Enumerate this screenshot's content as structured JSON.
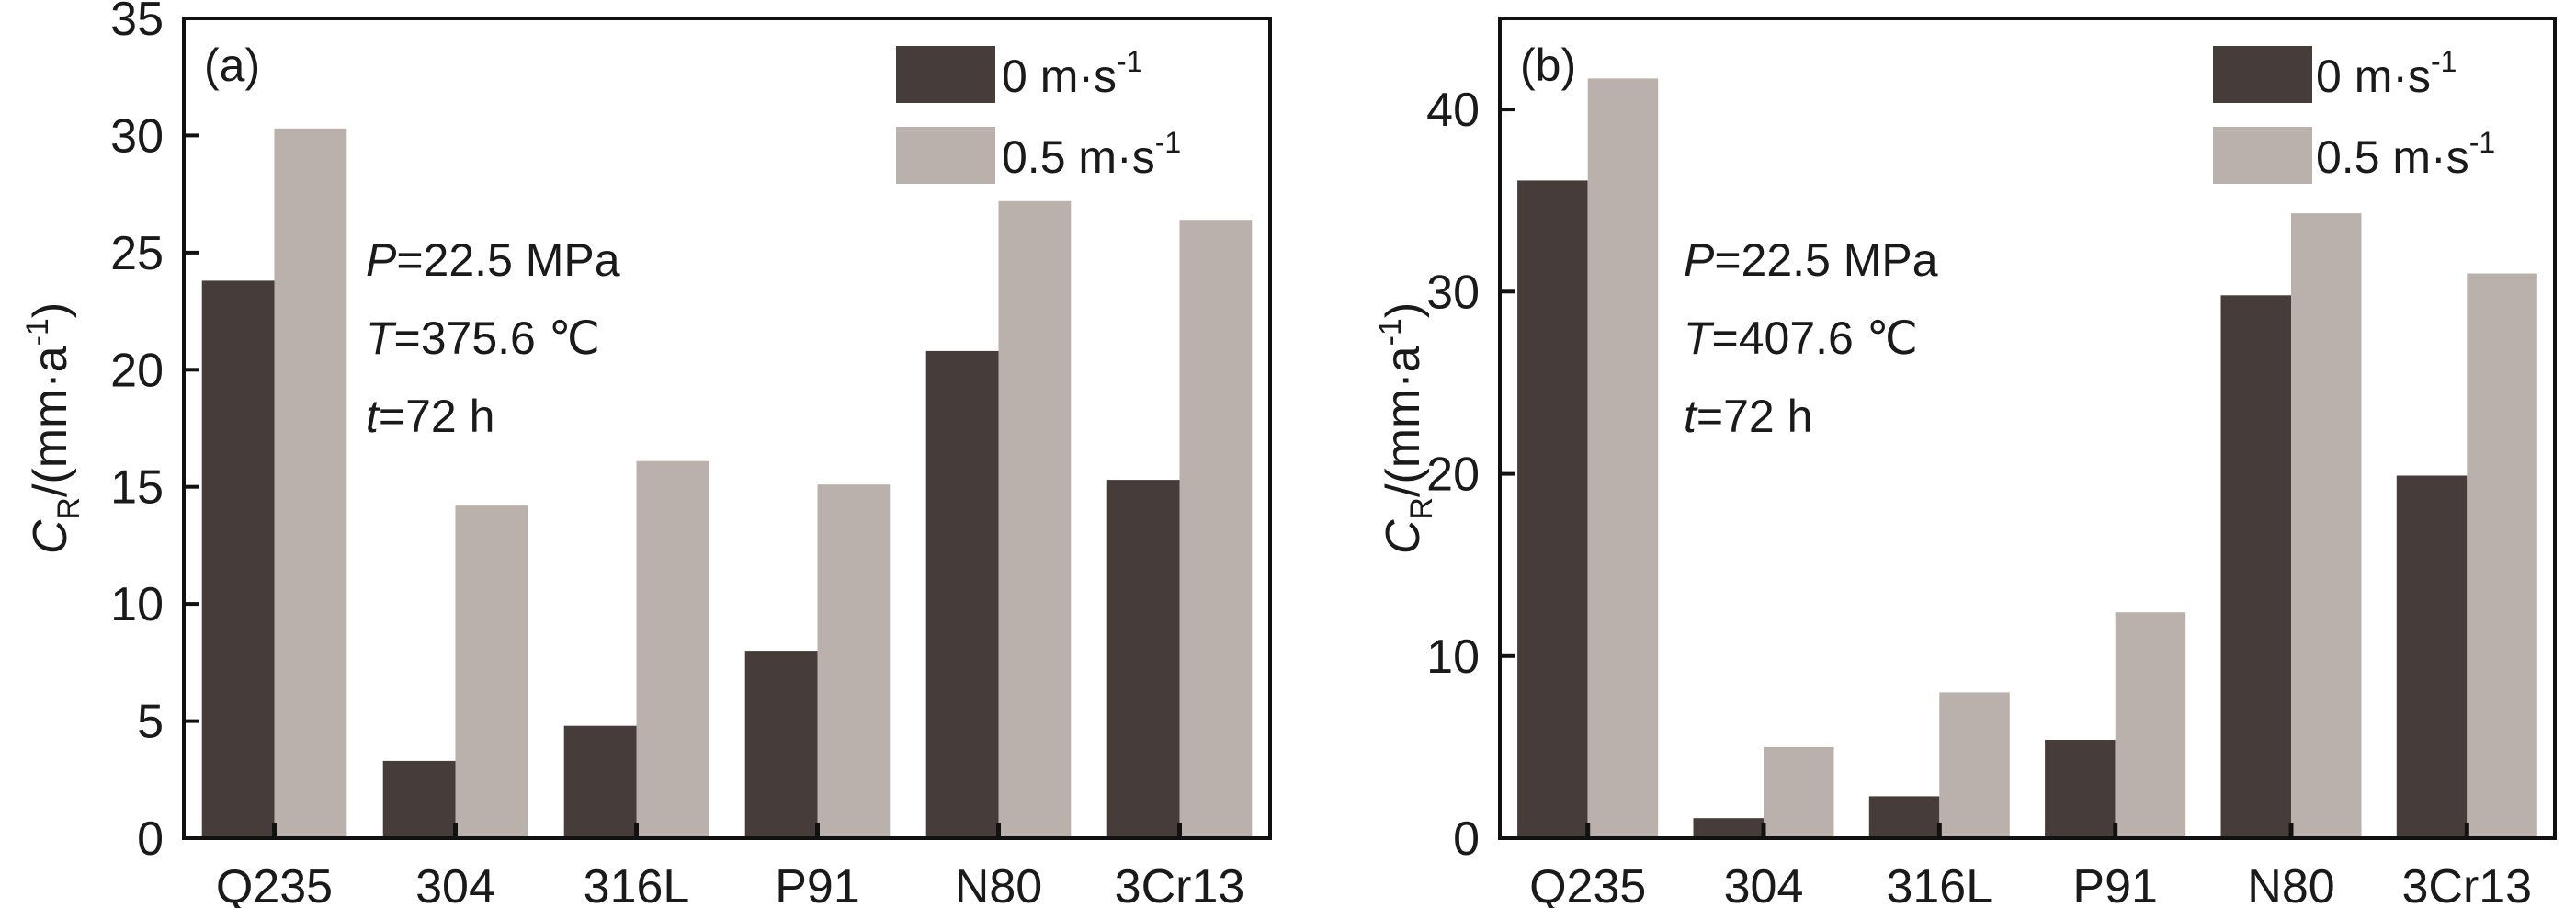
{
  "chart_data": [
    {
      "type": "bar",
      "panel_label": "(a)",
      "categories": [
        "Q235",
        "304",
        "316L",
        "P91",
        "N80",
        "3Cr13"
      ],
      "series": [
        {
          "name": "0 m·s",
          "name_sup": "-1",
          "color": "#463c39",
          "values": [
            23.8,
            3.3,
            4.8,
            8.0,
            20.8,
            15.3
          ]
        },
        {
          "name": "0.5 m·s",
          "name_sup": "-1",
          "color": "#bab1ad",
          "values": [
            30.3,
            14.2,
            16.1,
            15.1,
            27.2,
            26.4
          ]
        }
      ],
      "ylabel": {
        "main": "C",
        "sub": "R",
        "unit": "/(mm·a",
        "sup": "-1",
        "close": ")"
      },
      "ylim": [
        0,
        35
      ],
      "yticks": [
        0,
        5,
        10,
        15,
        20,
        25,
        30,
        35
      ],
      "annotations": [
        {
          "var": "P",
          "text": "=22.5 MPa"
        },
        {
          "var": "T",
          "text": "=375.6 ℃"
        },
        {
          "var": "t",
          "text": "=72 h"
        }
      ],
      "legend_position": "top-right",
      "grid": false
    },
    {
      "type": "bar",
      "panel_label": "(b)",
      "categories": [
        "Q235",
        "304",
        "316L",
        "P91",
        "N80",
        "3Cr13"
      ],
      "series": [
        {
          "name": "0 m·s",
          "name_sup": "-1",
          "color": "#463c39",
          "values": [
            36.1,
            1.1,
            2.3,
            5.4,
            29.8,
            19.9
          ]
        },
        {
          "name": "0.5 m·s",
          "name_sup": "-1",
          "color": "#bab1ad",
          "values": [
            41.7,
            5.0,
            8.0,
            12.4,
            34.3,
            31.0
          ]
        }
      ],
      "ylabel": {
        "main": "C",
        "sub": "R",
        "unit": "/(mm·a",
        "sup": "-1",
        "close": ")"
      },
      "ylim": [
        0,
        45
      ],
      "yticks": [
        0,
        10,
        20,
        30,
        40
      ],
      "annotations": [
        {
          "var": "P",
          "text": "=22.5 MPa"
        },
        {
          "var": "T",
          "text": "=407.6 ℃"
        },
        {
          "var": "t",
          "text": "=72 h"
        }
      ],
      "legend_position": "top-right",
      "grid": false
    }
  ]
}
